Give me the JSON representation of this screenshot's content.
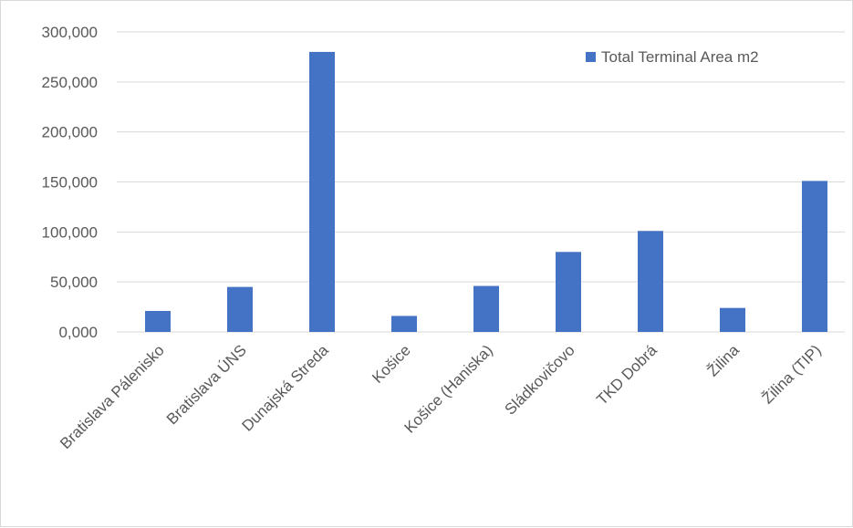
{
  "chart_data": {
    "type": "bar",
    "categories": [
      "Bratislava Pálenisko",
      "Bratislava ÚNS",
      "Dunajská Streda",
      "Košice",
      "Košice (Haniska)",
      "Sládkovičovo",
      "TKD Dobrá",
      "Žilina",
      "Žilina (TIP)"
    ],
    "series": [
      {
        "name": "Total Terminal Area m2",
        "values": [
          21000,
          45000,
          280000,
          16000,
          46000,
          80000,
          101000,
          24000,
          151000
        ]
      }
    ],
    "ylim": [
      0,
      300000
    ],
    "yticks": [
      0,
      50000,
      100000,
      150000,
      200000,
      250000,
      300000
    ],
    "ytick_labels": [
      "0,000",
      "50,000",
      "100,000",
      "150,000",
      "200,000",
      "250,000",
      "300,000"
    ],
    "grid": true,
    "legend_position": "top-right",
    "colors": {
      "bar": "#4472c4",
      "grid": "#d9d9d9",
      "text": "#595959"
    }
  }
}
